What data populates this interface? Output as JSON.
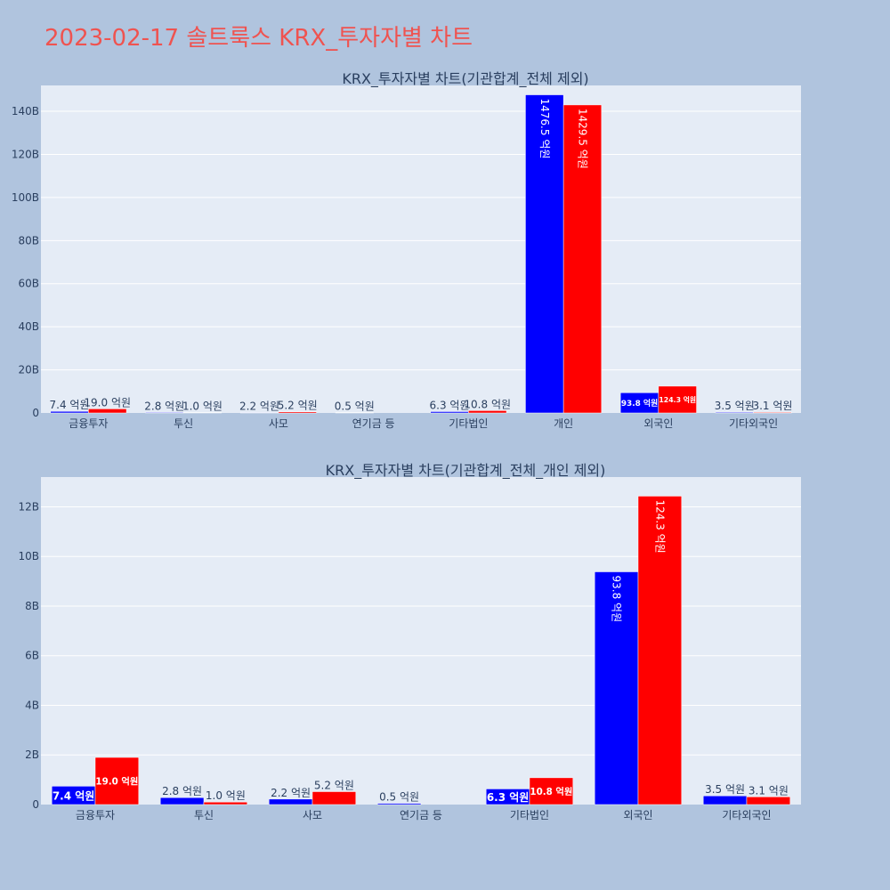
{
  "page_title": "2023-02-17 솔트룩스 KRX_투자자별 차트",
  "colors": {
    "series_a": "#0000ff",
    "series_b": "#ff0000",
    "plot_bg": "#e5ecf6",
    "page_bg": "#b0c4de"
  },
  "chart_data": [
    {
      "type": "bar",
      "title": "KRX_투자자별 차트(기관합계_전체 제외)",
      "categories": [
        "금융투자",
        "투신",
        "사모",
        "연기금 등",
        "기타법인",
        "개인",
        "외국인",
        "기타외국인"
      ],
      "ylim": [
        0,
        152
      ],
      "yticks": [
        0,
        20,
        40,
        60,
        80,
        100,
        120,
        140
      ],
      "ytick_labels": [
        "0",
        "20B",
        "40B",
        "60B",
        "80B",
        "100B",
        "120B",
        "140B"
      ],
      "series": [
        {
          "values": [
            0.74,
            0.28,
            0.22,
            0.05,
            0.63,
            147.65,
            9.38,
            0.35
          ],
          "labels": [
            "7.4 억원",
            "2.8 억원",
            "2.2 억원",
            "0.5 억원",
            "6.3 억원",
            "1476.5 억원",
            "93.8 억원",
            "3.5 억원"
          ]
        },
        {
          "values": [
            1.9,
            0.1,
            0.52,
            null,
            1.08,
            142.95,
            12.43,
            0.31
          ],
          "labels": [
            "19.0 억원",
            "1.0 억원",
            "5.2 억원",
            "",
            "10.8 억원",
            "1429.5 억원",
            "124.3 억원",
            "3.1 억원"
          ]
        }
      ]
    },
    {
      "type": "bar",
      "title": "KRX_투자자별 차트(기관합계_전체_개인 제외)",
      "categories": [
        "금융투자",
        "투신",
        "사모",
        "연기금 등",
        "기타법인",
        "외국인",
        "기타외국인"
      ],
      "ylim": [
        0,
        13.2
      ],
      "yticks": [
        0,
        2,
        4,
        6,
        8,
        10,
        12
      ],
      "ytick_labels": [
        "0",
        "2B",
        "4B",
        "6B",
        "8B",
        "10B",
        "12B"
      ],
      "series": [
        {
          "values": [
            0.74,
            0.28,
            0.22,
            0.05,
            0.63,
            9.38,
            0.35
          ],
          "labels": [
            "7.4 억원",
            "2.8 억원",
            "2.2 억원",
            "0.5 억원",
            "6.3 억원",
            "93.8 억원",
            "3.5 억원"
          ]
        },
        {
          "values": [
            1.9,
            0.1,
            0.52,
            null,
            1.08,
            12.43,
            0.31
          ],
          "labels": [
            "19.0 억원",
            "1.0 억원",
            "5.2 억원",
            "",
            "10.8 억원",
            "124.3 억원",
            "3.1 억원"
          ]
        }
      ]
    }
  ]
}
